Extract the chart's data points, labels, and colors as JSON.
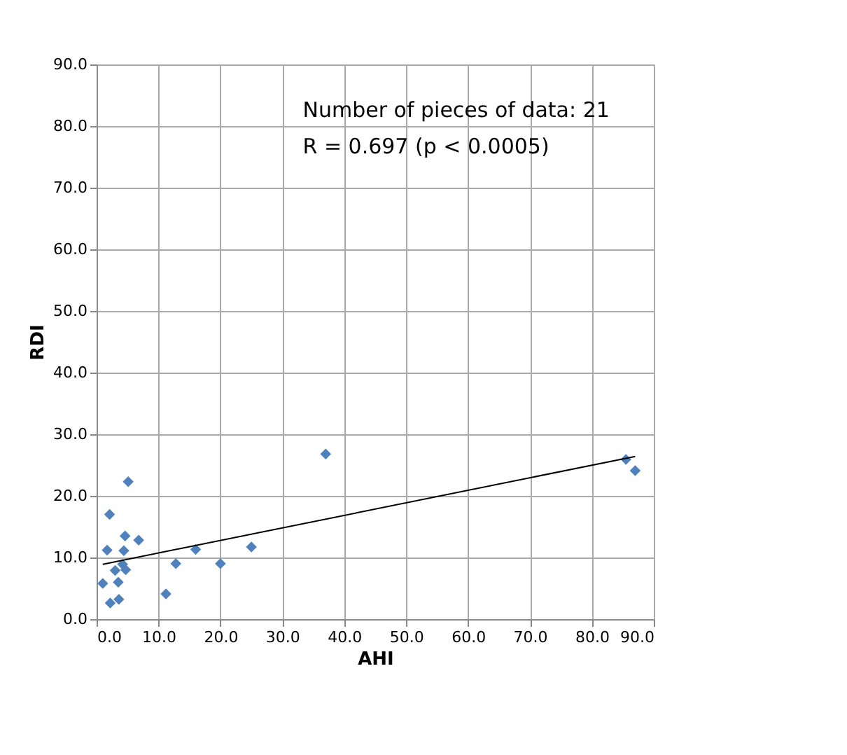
{
  "chart_data": {
    "type": "scatter",
    "xlabel": "AHI",
    "ylabel": "RDI",
    "annotations": [
      "Number of pieces of data: 21",
      "R = 0.697   (p < 0.0005)"
    ],
    "xlim": [
      0,
      90
    ],
    "ylim": [
      0,
      90
    ],
    "xticks": [
      {
        "value": 0,
        "label": "0.0"
      },
      {
        "value": 10,
        "label": "10.0"
      },
      {
        "value": 20,
        "label": "20.0"
      },
      {
        "value": 30,
        "label": "30.0"
      },
      {
        "value": 40,
        "label": "40.0"
      },
      {
        "value": 50,
        "label": "50.0"
      },
      {
        "value": 60,
        "label": "60.0"
      },
      {
        "value": 70,
        "label": "70.0"
      },
      {
        "value": 80,
        "label": "80.0"
      },
      {
        "value": 90,
        "label": "90.0"
      }
    ],
    "yticks": [
      {
        "value": 0,
        "label": "0.0"
      },
      {
        "value": 10,
        "label": "10.0"
      },
      {
        "value": 20,
        "label": "20.0"
      },
      {
        "value": 30,
        "label": "30.0"
      },
      {
        "value": 40,
        "label": "40.0"
      },
      {
        "value": 50,
        "label": "50.0"
      },
      {
        "value": 60,
        "label": "60.0"
      },
      {
        "value": 70,
        "label": "70.0"
      },
      {
        "value": 80,
        "label": "80.0"
      },
      {
        "value": 90,
        "label": "90.0"
      }
    ],
    "grid": true,
    "series": [
      {
        "marker": "diamond",
        "color": "#4f81bd",
        "x": [
          1.0,
          1.7,
          2.1,
          2.2,
          3.0,
          3.5,
          3.6,
          4.2,
          4.4,
          4.6,
          4.7,
          5.1,
          6.8,
          11.2,
          12.8,
          16.0,
          20.0,
          25.0,
          37.0,
          85.5,
          87.0
        ],
        "values": [
          5.8,
          11.2,
          17.0,
          2.6,
          7.9,
          6.0,
          3.2,
          8.9,
          11.1,
          13.5,
          8.0,
          22.3,
          12.8,
          4.1,
          9.0,
          11.3,
          9.0,
          11.7,
          26.8,
          25.9,
          24.1
        ]
      },
      {
        "type": "line",
        "color": "#000000",
        "x": [
          1.0,
          87.0
        ],
        "values": [
          8.9,
          26.4
        ]
      }
    ]
  }
}
